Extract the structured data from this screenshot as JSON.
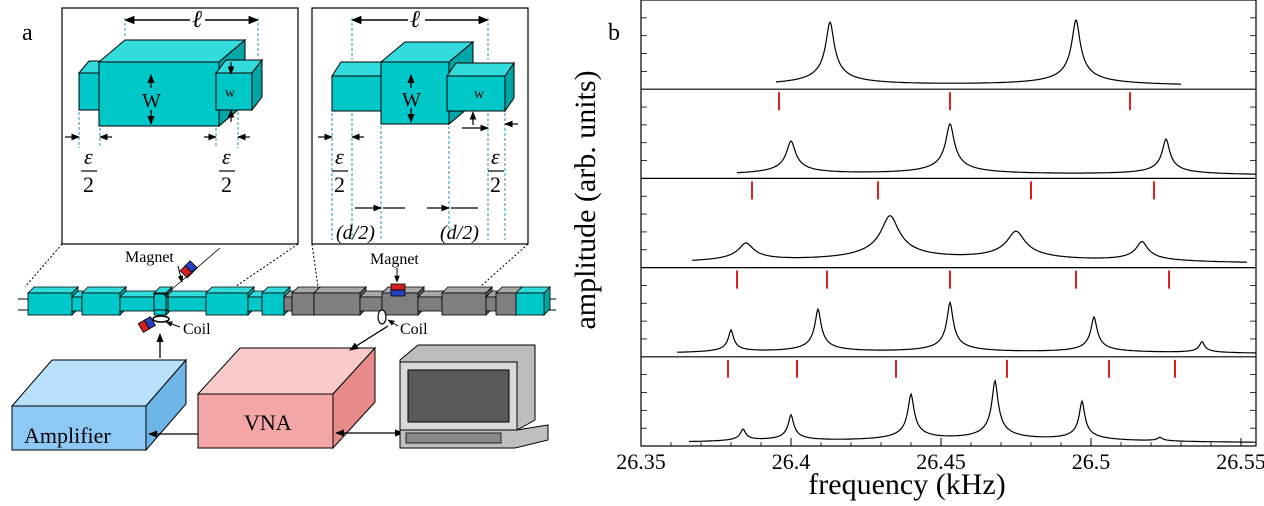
{
  "panel_a": {
    "label": "a",
    "inset_left": {
      "length": "ℓ",
      "big_width": "W",
      "small_width": "w",
      "eps_num": "ε",
      "eps_den": "2"
    },
    "inset_right": {
      "length": "ℓ",
      "big_width": "W",
      "small_width": "w",
      "eps_num": "ε",
      "eps_den": "2",
      "half_d": "(d/2)"
    },
    "setup": {
      "magnet": "Magnet",
      "coil": "Coil",
      "amplifier": "Amplifier",
      "vna": "VNA"
    },
    "colors": {
      "cyan": "#00c8c8",
      "gray": "#7f7f7f",
      "amplifier": "#8ec9f5",
      "vna": "#f4a6a6",
      "magnet_red": "#d62020",
      "magnet_blue": "#2a3fbf"
    }
  },
  "panel_b": {
    "label": "b",
    "chart_data": {
      "type": "line",
      "xlabel": "frequency (kHz)",
      "ylabel": "amplitude (arb. units)",
      "xlim": [
        26.35,
        26.555
      ],
      "x_ticks": [
        26.35,
        26.4,
        26.45,
        26.5,
        26.55
      ],
      "x_tick_labels": [
        "26.35",
        "26.4",
        "26.45",
        "26.5",
        "26.55"
      ],
      "stacked_panels": 5,
      "series": [
        {
          "peaks": [
            {
              "x": 26.413,
              "amp": 0.85,
              "width": 0.0025
            },
            {
              "x": 26.495,
              "amp": 0.88,
              "width": 0.0025
            }
          ],
          "markers": []
        },
        {
          "peaks": [
            {
              "x": 26.4,
              "amp": 0.45,
              "width": 0.0027
            },
            {
              "x": 26.453,
              "amp": 0.68,
              "width": 0.0025
            },
            {
              "x": 26.525,
              "amp": 0.48,
              "width": 0.0022
            }
          ],
          "markers": [
            26.396,
            26.453,
            26.513
          ]
        },
        {
          "peaks": [
            {
              "x": 26.385,
              "amp": 0.25,
              "width": 0.0045
            },
            {
              "x": 26.433,
              "amp": 0.62,
              "width": 0.0055
            },
            {
              "x": 26.475,
              "amp": 0.4,
              "width": 0.0055
            },
            {
              "x": 26.517,
              "amp": 0.27,
              "width": 0.0035
            }
          ],
          "markers": [
            26.387,
            26.429,
            26.48,
            26.521
          ]
        },
        {
          "peaks": [
            {
              "x": 26.38,
              "amp": 0.3,
              "width": 0.0015
            },
            {
              "x": 26.409,
              "amp": 0.58,
              "width": 0.0018
            },
            {
              "x": 26.453,
              "amp": 0.67,
              "width": 0.0018
            },
            {
              "x": 26.501,
              "amp": 0.48,
              "width": 0.0018
            },
            {
              "x": 26.537,
              "amp": 0.15,
              "width": 0.0015
            }
          ],
          "markers": [
            26.382,
            26.412,
            26.453,
            26.495,
            26.526
          ]
        },
        {
          "peaks": [
            {
              "x": 26.384,
              "amp": 0.16,
              "width": 0.0015
            },
            {
              "x": 26.4,
              "amp": 0.35,
              "width": 0.0016
            },
            {
              "x": 26.44,
              "amp": 0.62,
              "width": 0.0018
            },
            {
              "x": 26.468,
              "amp": 0.8,
              "width": 0.0018
            },
            {
              "x": 26.497,
              "amp": 0.53,
              "width": 0.0016
            },
            {
              "x": 26.523,
              "amp": 0.05,
              "width": 0.0015
            }
          ],
          "markers": [
            26.379,
            26.402,
            26.435,
            26.472,
            26.506,
            26.528
          ]
        }
      ]
    }
  }
}
